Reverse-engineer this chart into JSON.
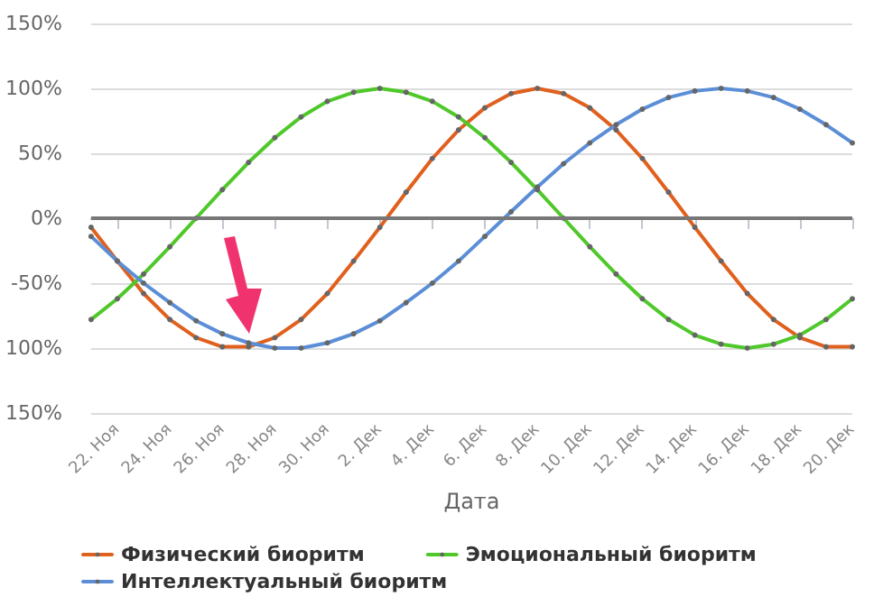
{
  "chart_data": {
    "type": "line",
    "xlabel": "Дата",
    "categories": [
      null,
      "22. Ноя",
      null,
      "24. Ноя",
      null,
      "26. Ноя",
      null,
      "28. Ноя",
      null,
      "30. Ноя",
      null,
      "2. Дек",
      null,
      "4. Дек",
      null,
      "6. Дек",
      null,
      "8. Дек",
      null,
      "10. Дек",
      null,
      "12. Дек",
      null,
      "14. Дек",
      null,
      "16. Дек",
      null,
      "18. Дек",
      null,
      "20. Дек"
    ],
    "series": [
      {
        "name": "Физический биоритм",
        "color": "#e0601e",
        "values": [
          -7,
          -33,
          -58,
          -78,
          -92,
          -99,
          -99,
          -92,
          -78,
          -58,
          -33,
          -7,
          20,
          46,
          68,
          85,
          96,
          100,
          96,
          85,
          68,
          46,
          20,
          -7,
          -33,
          -58,
          -78,
          -92,
          -99,
          -99
        ]
      },
      {
        "name": "Эмоциональный биоритм",
        "color": "#4fc82a",
        "values": [
          -78,
          -62,
          -43,
          -22,
          0,
          22,
          43,
          62,
          78,
          90,
          97,
          100,
          97,
          90,
          78,
          62,
          43,
          22,
          0,
          -22,
          -43,
          -62,
          -78,
          -90,
          -97,
          -100,
          -97,
          -90,
          -78,
          -62
        ]
      },
      {
        "name": "Интеллектуальный биоритм",
        "color": "#5b8ed6",
        "values": [
          -14,
          -33,
          -50,
          -65,
          -79,
          -89,
          -96,
          -100,
          -100,
          -96,
          -89,
          -79,
          -65,
          -50,
          -33,
          -14,
          5,
          24,
          42,
          58,
          72,
          84,
          93,
          98,
          100,
          98,
          93,
          84,
          72,
          58
        ]
      }
    ],
    "ylim": [
      -150,
      150
    ],
    "yticks": [
      {
        "value": 150,
        "label": "150%"
      },
      {
        "value": 100,
        "label": "100%"
      },
      {
        "value": 50,
        "label": "50%"
      },
      {
        "value": 0,
        "label": "0%"
      },
      {
        "value": -50,
        "label": "-50%"
      },
      {
        "value": -100,
        "label": "100%"
      },
      {
        "value": -150,
        "label": "150%"
      }
    ],
    "ref_lines": [
      {
        "axis": "y",
        "value": 0,
        "color": "#777777"
      }
    ],
    "grid": "y",
    "legend": "bottom left",
    "marker": "circle",
    "line_style": "solid"
  }
}
